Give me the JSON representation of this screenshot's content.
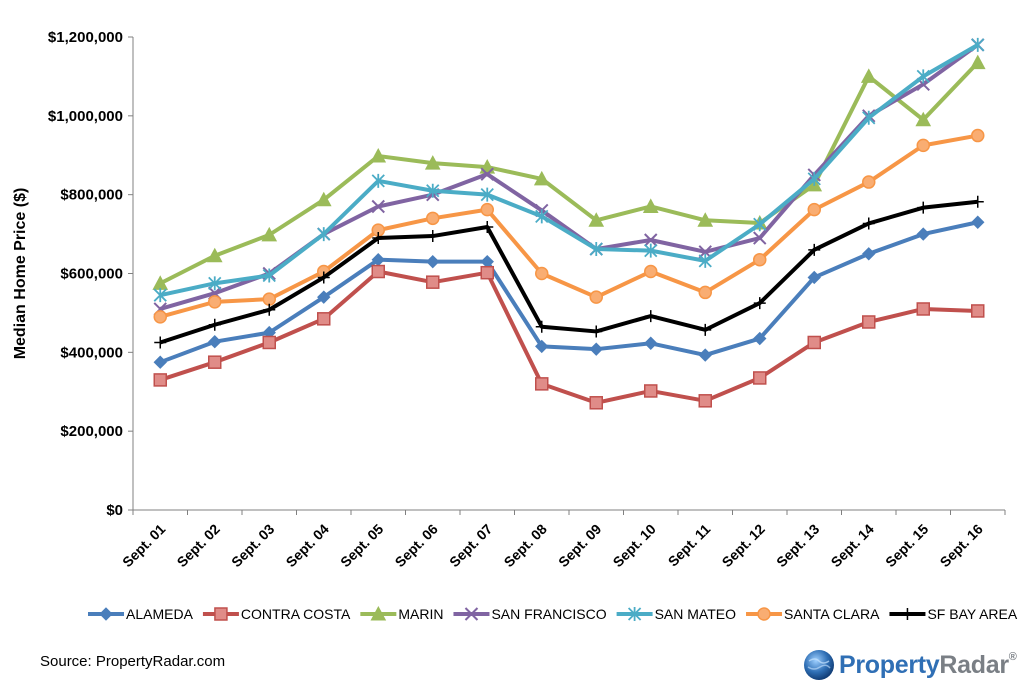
{
  "chart_data": {
    "type": "line",
    "title": "",
    "xlabel": "",
    "ylabel": "Median Home Price ($)",
    "ylim": [
      0,
      1200000
    ],
    "yticks": [
      0,
      200000,
      400000,
      600000,
      800000,
      1000000,
      1200000
    ],
    "ytick_labels": [
      "$0",
      "$200,000",
      "$400,000",
      "$600,000",
      "$800,000",
      "$1,000,000",
      "$1,200,000"
    ],
    "categories": [
      "Sept. 01",
      "Sept. 02",
      "Sept. 03",
      "Sept. 04",
      "Sept. 05",
      "Sept. 06",
      "Sept. 07",
      "Sept. 08",
      "Sept. 09",
      "Sept. 10",
      "Sept. 11",
      "Sept. 12",
      "Sept. 13",
      "Sept. 14",
      "Sept. 15",
      "Sept. 16"
    ],
    "grid": false,
    "legend_position": "bottom",
    "series": [
      {
        "name": "ALAMEDA",
        "color": "#4a7ebb",
        "marker": "diamond",
        "values": [
          375000,
          427000,
          450000,
          540000,
          635000,
          630000,
          630000,
          415000,
          408000,
          423000,
          393000,
          435000,
          590000,
          650000,
          700000,
          730000
        ]
      },
      {
        "name": "CONTRA COSTA",
        "color": "#c0504d",
        "marker": "square",
        "values": [
          330000,
          375000,
          425000,
          485000,
          605000,
          578000,
          602000,
          320000,
          272000,
          302000,
          277000,
          335000,
          425000,
          477000,
          510000,
          505000
        ]
      },
      {
        "name": "MARIN",
        "color": "#9bbb59",
        "marker": "triangle",
        "values": [
          575000,
          645000,
          698000,
          787000,
          898000,
          880000,
          870000,
          840000,
          735000,
          770000,
          735000,
          728000,
          825000,
          1100000,
          990000,
          1135000
        ]
      },
      {
        "name": "SAN FRANCISCO",
        "color": "#8064a2",
        "marker": "x",
        "values": [
          510000,
          550000,
          600000,
          700000,
          770000,
          800000,
          852000,
          760000,
          662000,
          685000,
          655000,
          690000,
          850000,
          1000000,
          1080000,
          1180000
        ]
      },
      {
        "name": "SAN MATEO",
        "color": "#4bacc6",
        "marker": "star",
        "values": [
          545000,
          575000,
          595000,
          700000,
          835000,
          810000,
          800000,
          745000,
          662000,
          658000,
          632000,
          725000,
          840000,
          995000,
          1100000,
          1180000
        ]
      },
      {
        "name": "SANTA CLARA",
        "color": "#f79646",
        "marker": "circle",
        "values": [
          490000,
          528000,
          535000,
          605000,
          710000,
          740000,
          762000,
          600000,
          540000,
          605000,
          552000,
          635000,
          762000,
          832000,
          925000,
          950000
        ]
      },
      {
        "name": "SF BAY AREA",
        "color": "#000000",
        "marker": "plus",
        "values": [
          425000,
          470000,
          508000,
          590000,
          690000,
          695000,
          718000,
          465000,
          453000,
          492000,
          457000,
          525000,
          660000,
          727000,
          767000,
          782000
        ]
      }
    ]
  },
  "footer": {
    "source": "Source: PropertyRadar.com",
    "brand_part1": "Property",
    "brand_part2": "Radar",
    "brand_tm": "®"
  }
}
